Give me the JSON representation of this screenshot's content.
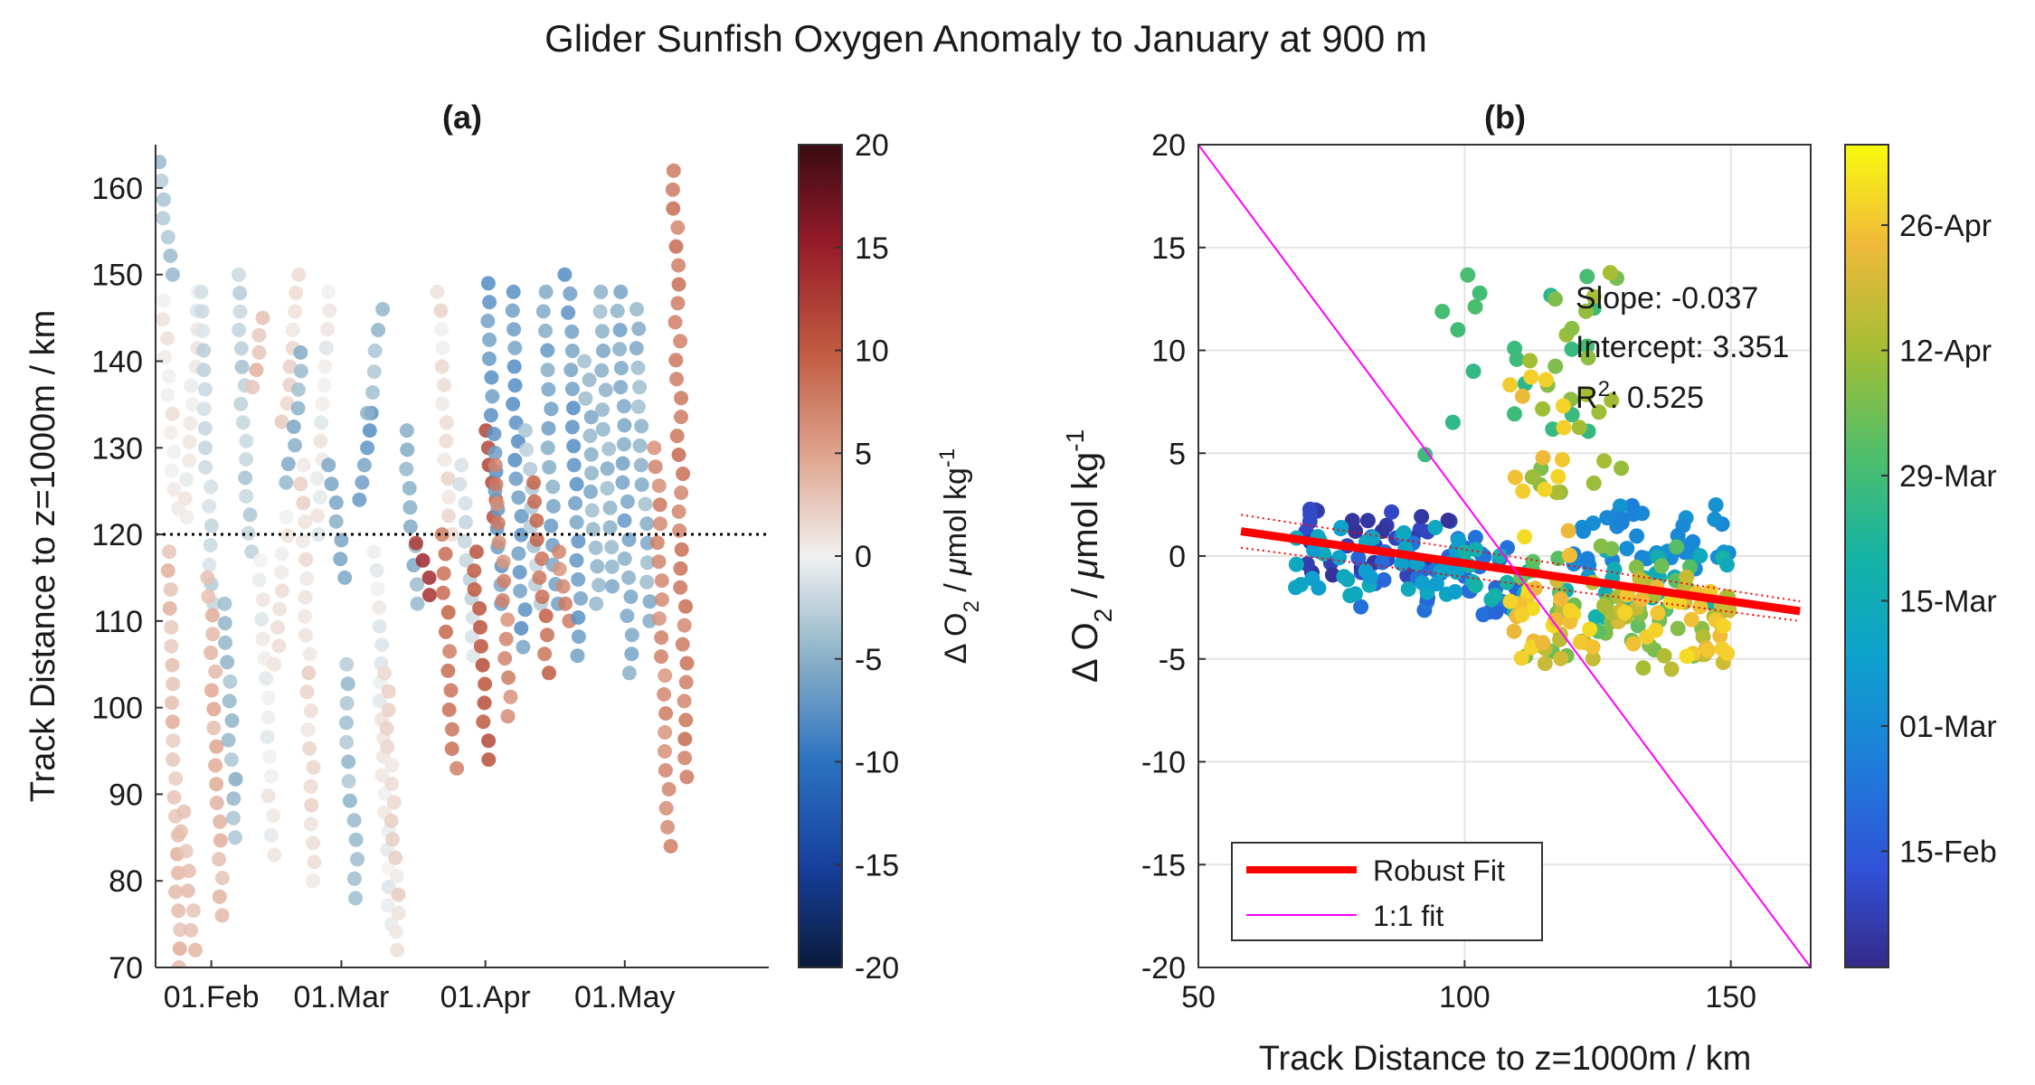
{
  "figure": {
    "title": "Glider Sunfish Oxygen Anomaly to January at 900 m"
  },
  "chart_data": [
    {
      "panel": "(a)",
      "type": "scatter",
      "title": "(a)",
      "xlabel": "",
      "ylabel": "Track Distance to z=1000m / km",
      "xlim": [
        "2019-01-20",
        "2019-06-01"
      ],
      "xticks": [
        "01.Feb",
        "01.Mar",
        "01.Apr",
        "01.May"
      ],
      "xtick_dates": [
        "2019-02-01",
        "2019-03-01",
        "2019-04-01",
        "2019-05-01"
      ],
      "ylim": [
        70,
        165
      ],
      "yticks": [
        70,
        80,
        90,
        100,
        110,
        120,
        130,
        140,
        150,
        160
      ],
      "reference_line": {
        "y": 120,
        "style": "dotted",
        "color": "#000000"
      },
      "colorbar": {
        "label": "Δ O2 / μmol kg-1",
        "label_parts": {
          "prefix": "Δ O",
          "sub": "2",
          "mid": " / ",
          "mu": "μ",
          "unit": "mol kg",
          "sup": "-1"
        },
        "range": [
          -20,
          20
        ],
        "ticks": [
          -20,
          -15,
          -10,
          -5,
          0,
          5,
          10,
          15,
          20
        ],
        "colormap": "balance (blue-white-red)"
      },
      "profiles": [
        {
          "date": "2019-01-22",
          "y_start": 163,
          "y_end": 150,
          "o2": -4
        },
        {
          "date": "2019-01-23",
          "y_start": 147,
          "y_end": 123,
          "o2": 0.5
        },
        {
          "date": "2019-01-24",
          "y_start": 118,
          "y_end": 70,
          "o2": 3.5
        },
        {
          "date": "2019-01-27",
          "y_start": 88,
          "y_end": 72,
          "o2": 3
        },
        {
          "date": "2019-01-28",
          "y_start": 122,
          "y_end": 148,
          "o2": 0
        },
        {
          "date": "2019-01-31",
          "y_start": 148,
          "y_end": 112,
          "o2": -2
        },
        {
          "date": "2019-02-02",
          "y_start": 115,
          "y_end": 76,
          "o2": 4
        },
        {
          "date": "2019-02-05",
          "y_start": 112,
          "y_end": 85,
          "o2": -4.5
        },
        {
          "date": "2019-02-08",
          "y_start": 150,
          "y_end": 118,
          "o2": -3
        },
        {
          "date": "2019-02-11",
          "y_start": 137,
          "y_end": 145,
          "o2": 3.5
        },
        {
          "date": "2019-02-13",
          "y_start": 117,
          "y_end": 83,
          "o2": 0
        },
        {
          "date": "2019-02-16",
          "y_start": 105,
          "y_end": 122,
          "o2": 1
        },
        {
          "date": "2019-02-18",
          "y_start": 133,
          "y_end": 150,
          "o2": 1.5
        },
        {
          "date": "2019-02-19",
          "y_start": 126,
          "y_end": 141,
          "o2": -5
        },
        {
          "date": "2019-02-22",
          "y_start": 128,
          "y_end": 80,
          "o2": 1.5
        },
        {
          "date": "2019-02-25",
          "y_start": 120,
          "y_end": 148,
          "o2": 0
        },
        {
          "date": "2019-02-28",
          "y_start": 128,
          "y_end": 115,
          "o2": -6
        },
        {
          "date": "2019-03-03",
          "y_start": 105,
          "y_end": 78,
          "o2": -4
        },
        {
          "date": "2019-03-06",
          "y_start": 124,
          "y_end": 134,
          "o2": -7
        },
        {
          "date": "2019-03-08",
          "y_start": 134,
          "y_end": 146,
          "o2": -4
        },
        {
          "date": "2019-03-10",
          "y_start": 118,
          "y_end": 75,
          "o2": 0
        },
        {
          "date": "2019-03-12",
          "y_start": 104,
          "y_end": 72,
          "o2": 1.5
        },
        {
          "date": "2019-03-16",
          "y_start": 132,
          "y_end": 112,
          "o2": -5
        },
        {
          "date": "2019-03-19",
          "y_start": 119,
          "y_end": 113,
          "o2": 13
        },
        {
          "date": "2019-03-23",
          "y_start": 148,
          "y_end": 120,
          "o2": 1
        },
        {
          "date": "2019-03-24",
          "y_start": 120,
          "y_end": 93,
          "o2": 8.5
        },
        {
          "date": "2019-03-28",
          "y_start": 128,
          "y_end": 106,
          "o2": -2
        },
        {
          "date": "2019-03-31",
          "y_start": 118,
          "y_end": 94,
          "o2": 11
        },
        {
          "date": "2019-04-02",
          "y_start": 132,
          "y_end": 122,
          "o2": 11
        },
        {
          "date": "2019-04-03",
          "y_start": 149,
          "y_end": 112,
          "o2": -7
        },
        {
          "date": "2019-04-05",
          "y_start": 128,
          "y_end": 99,
          "o2": 7
        },
        {
          "date": "2019-04-08",
          "y_start": 148,
          "y_end": 107,
          "o2": -7
        },
        {
          "date": "2019-04-11",
          "y_start": 132,
          "y_end": 112,
          "o2": -3
        },
        {
          "date": "2019-04-13",
          "y_start": 126,
          "y_end": 104,
          "o2": 9
        },
        {
          "date": "2019-04-15",
          "y_start": 148,
          "y_end": 112,
          "o2": -6
        },
        {
          "date": "2019-04-18",
          "y_start": 118,
          "y_end": 110,
          "o2": 7
        },
        {
          "date": "2019-04-20",
          "y_start": 150,
          "y_end": 106,
          "o2": -7
        },
        {
          "date": "2019-04-24",
          "y_start": 140,
          "y_end": 112,
          "o2": -5
        },
        {
          "date": "2019-04-27",
          "y_start": 148,
          "y_end": 114,
          "o2": -5
        },
        {
          "date": "2019-05-01",
          "y_start": 148,
          "y_end": 104,
          "o2": -6
        },
        {
          "date": "2019-05-05",
          "y_start": 146,
          "y_end": 110,
          "o2": -5
        },
        {
          "date": "2019-05-09",
          "y_start": 130,
          "y_end": 84,
          "o2": 7
        },
        {
          "date": "2019-05-13",
          "y_start": 162,
          "y_end": 92,
          "o2": 8
        }
      ]
    },
    {
      "panel": "(b)",
      "type": "scatter",
      "title": "(b)",
      "xlabel": "Track Distance to z=1000m / km",
      "ylabel": "Δ O2 / μmol kg-1",
      "ylabel_parts": {
        "prefix": "Δ O",
        "sub": "2",
        "mid": " / ",
        "mu": "μ",
        "unit": "mol kg",
        "sup": "-1"
      },
      "xlim": [
        50,
        165
      ],
      "xticks": [
        50,
        100,
        150
      ],
      "ylim": [
        -20,
        20
      ],
      "yticks": [
        -20,
        -15,
        -10,
        -5,
        0,
        5,
        10,
        15,
        20
      ],
      "grid": true,
      "annotations": {
        "slope_text": "Slope: -0.037",
        "intercept_text": "Intercept: 3.351",
        "r2_prefix": "R",
        "r2_sup": "2",
        "r2_suffix": ": 0.525"
      },
      "fits": [
        {
          "name": "Robust Fit",
          "slope": -0.037,
          "intercept": 3.351,
          "x_range": [
            58,
            163
          ],
          "color": "#ff0000"
        },
        {
          "name": "1:1 fit",
          "points": [
            [
              50,
              20
            ],
            [
              165,
              -20
            ]
          ],
          "color": "#ff00ff"
        }
      ],
      "confidence_band": {
        "upper_offset": 0.8,
        "lower_offset": -0.8,
        "style": "dotted",
        "color": "#ff0000"
      },
      "legend": {
        "placement": "bottom-left",
        "entries": [
          "Robust Fit",
          "1:1 fit"
        ]
      },
      "colorbar": {
        "ticks": [
          "15-Feb",
          "01-Mar",
          "15-Mar",
          "29-Mar",
          "12-Apr",
          "26-Apr"
        ],
        "tick_dates": [
          "2019-02-15",
          "2019-03-01",
          "2019-03-15",
          "2019-03-29",
          "2019-04-12",
          "2019-04-26"
        ],
        "range": [
          "2019-02-02",
          "2019-05-05"
        ],
        "colormap": "parula"
      },
      "clusters": [
        {
          "date": "2019-02-08",
          "x_range": [
            70,
            100
          ],
          "y_range": [
            -1,
            2.5
          ],
          "n": 40
        },
        {
          "date": "2019-02-20",
          "x_range": [
            80,
            110
          ],
          "y_range": [
            -3,
            1
          ],
          "n": 40
        },
        {
          "date": "2019-03-01",
          "x_range": [
            120,
            150
          ],
          "y_range": [
            -1,
            2.5
          ],
          "n": 40
        },
        {
          "date": "2019-03-10",
          "x_range": [
            68,
            100
          ],
          "y_range": [
            -2,
            1.5
          ],
          "n": 40
        },
        {
          "date": "2019-03-17",
          "x_range": [
            100,
            150
          ],
          "y_range": [
            -3,
            0.5
          ],
          "n": 40
        },
        {
          "date": "2019-03-28",
          "x_range": [
            92,
            125
          ],
          "y_range": [
            4,
            14.5
          ],
          "n": 20
        },
        {
          "date": "2019-04-05",
          "x_range": [
            110,
            145
          ],
          "y_range": [
            -5,
            0.5
          ],
          "n": 40
        },
        {
          "date": "2019-04-10",
          "x_range": [
            112,
            132
          ],
          "y_range": [
            2,
            14
          ],
          "n": 25
        },
        {
          "date": "2019-04-16",
          "x_range": [
            115,
            150
          ],
          "y_range": [
            -5.5,
            -1
          ],
          "n": 40
        },
        {
          "date": "2019-04-26",
          "x_range": [
            108,
            150
          ],
          "y_range": [
            -5,
            -1.5
          ],
          "n": 45
        },
        {
          "date": "2019-04-26",
          "x_range": [
            108,
            120
          ],
          "y_range": [
            0,
            9
          ],
          "n": 15
        }
      ]
    }
  ]
}
